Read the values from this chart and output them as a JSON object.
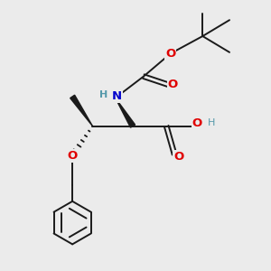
{
  "background_color": "#ebebeb",
  "fig_size": [
    3.0,
    3.0
  ],
  "dpi": 100,
  "bond_color": "#1a1a1a",
  "bond_width": 1.4,
  "atom_colors": {
    "O": "#e00000",
    "N": "#0000cc",
    "H_gray": "#5599aa",
    "C": "#1a1a1a"
  },
  "font_size_atom": 9.5,
  "font_size_h": 8.0
}
